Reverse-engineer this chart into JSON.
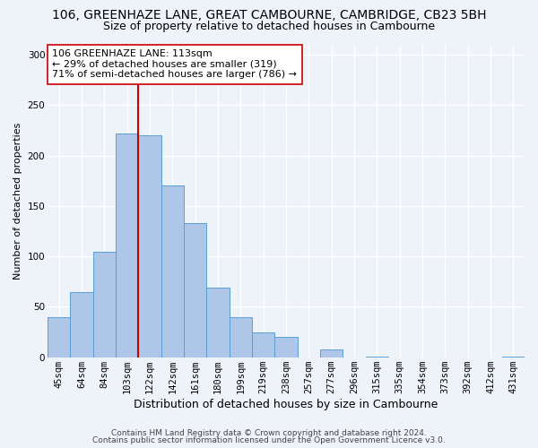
{
  "title": "106, GREENHAZE LANE, GREAT CAMBOURNE, CAMBRIDGE, CB23 5BH",
  "subtitle": "Size of property relative to detached houses in Cambourne",
  "xlabel": "Distribution of detached houses by size in Cambourne",
  "ylabel": "Number of detached properties",
  "bar_labels": [
    "45sqm",
    "64sqm",
    "84sqm",
    "103sqm",
    "122sqm",
    "142sqm",
    "161sqm",
    "180sqm",
    "199sqm",
    "219sqm",
    "238sqm",
    "257sqm",
    "277sqm",
    "296sqm",
    "315sqm",
    "335sqm",
    "354sqm",
    "373sqm",
    "392sqm",
    "412sqm",
    "431sqm"
  ],
  "bar_heights": [
    40,
    65,
    105,
    222,
    220,
    170,
    133,
    69,
    40,
    25,
    20,
    0,
    8,
    0,
    1,
    0,
    0,
    0,
    0,
    0,
    1
  ],
  "bar_color": "#aec6e8",
  "bar_edge_color": "#5a9fd4",
  "vline_x_index": 3,
  "vline_color": "#cc0000",
  "annotation_line1": "106 GREENHAZE LANE: 113sqm",
  "annotation_line2": "← 29% of detached houses are smaller (319)",
  "annotation_line3": "71% of semi-detached houses are larger (786) →",
  "annotation_box_color": "#ffffff",
  "annotation_box_edge": "#cc0000",
  "ylim": [
    0,
    310
  ],
  "yticks": [
    0,
    50,
    100,
    150,
    200,
    250,
    300
  ],
  "footer1": "Contains HM Land Registry data © Crown copyright and database right 2024.",
  "footer2": "Contains public sector information licensed under the Open Government Licence v3.0.",
  "bg_color": "#eef2f9",
  "grid_color": "#ffffff",
  "title_fontsize": 10,
  "subtitle_fontsize": 9,
  "xlabel_fontsize": 9,
  "ylabel_fontsize": 8,
  "tick_fontsize": 7.5,
  "annotation_fontsize": 8,
  "footer_fontsize": 6.5
}
